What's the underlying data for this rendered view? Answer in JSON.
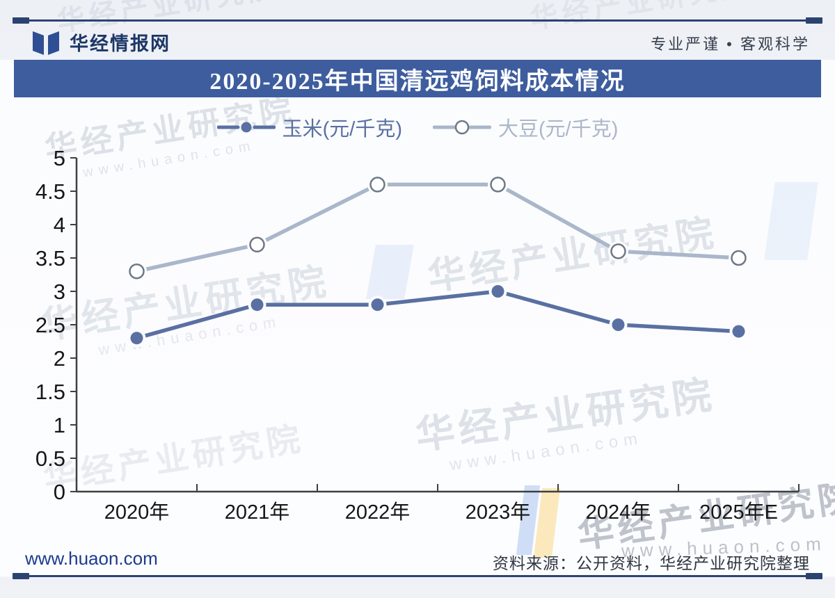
{
  "header": {
    "site_name": "华经情报网",
    "tagline": "专业严谨 • 客观科学"
  },
  "title": "2020-2025年中国清远鸡饲料成本情况",
  "watermark": {
    "name": "华经产业研究院",
    "url": "www.huaon.com"
  },
  "footer": {
    "site_url": "www.huaon.com",
    "source": "资料来源：公开资料，华经产业研究院整理"
  },
  "colors": {
    "title_bar_bg": "#3e5d9f",
    "rule": "#2c4372",
    "corn": "#5a70a2",
    "soybean": "#aab7ca",
    "soybean_ring": "#6e7887",
    "axis": "#3f3f3f"
  },
  "chart_data": {
    "type": "line",
    "title": "2020-2025年中国清远鸡饲料成本情况",
    "categories": [
      "2020年",
      "2021年",
      "2022年",
      "2023年",
      "2024年",
      "2025年E"
    ],
    "series": [
      {
        "name": "玉米(元/千克)",
        "values": [
          2.3,
          2.8,
          2.8,
          3.0,
          2.5,
          2.4
        ],
        "color": "#5a70a2",
        "marker": "filled"
      },
      {
        "name": "大豆(元/千克)",
        "values": [
          3.3,
          3.7,
          4.6,
          4.6,
          3.6,
          3.5
        ],
        "color": "#aab7ca",
        "marker": "open",
        "marker_stroke": "#6e7887"
      }
    ],
    "xlabel": "",
    "ylabel": "",
    "ylim": [
      0,
      5
    ],
    "ytick_step": 0.5,
    "grid": false,
    "legend_position": "top"
  }
}
